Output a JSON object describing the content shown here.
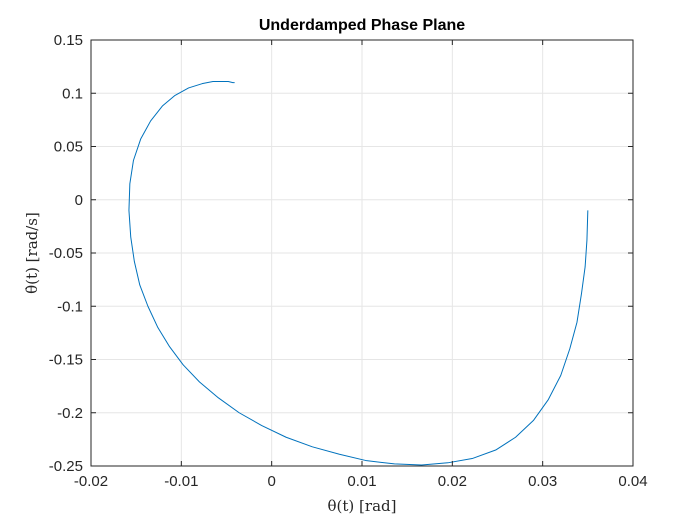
{
  "chart_data": {
    "type": "line",
    "title": "Underdamped Phase Plane",
    "xlabel": "θ(t) [rad]",
    "ylabel": "θ̇(t) [rad/s]",
    "xlim": [
      -0.02,
      0.04
    ],
    "ylim": [
      -0.25,
      0.15
    ],
    "xticks": [
      -0.02,
      -0.01,
      0,
      0.01,
      0.02,
      0.03,
      0.04
    ],
    "yticks": [
      -0.25,
      -0.2,
      -0.15,
      -0.1,
      -0.05,
      0,
      0.05,
      0.1,
      0.15
    ],
    "xtick_labels": [
      "-0.02",
      "-0.01",
      "0",
      "0.01",
      "0.02",
      "0.03",
      "0.04"
    ],
    "ytick_labels": [
      "-0.25",
      "-0.2",
      "-0.15",
      "-0.1",
      "-0.05",
      "0",
      "0.05",
      "0.1",
      "0.15"
    ],
    "grid": true,
    "series": [
      {
        "color": "#0072BD",
        "x": [
          0.035,
          0.0349,
          0.0347,
          0.0343,
          0.0338,
          0.033,
          0.032,
          0.0306,
          0.029,
          0.027,
          0.0248,
          0.0222,
          0.0195,
          0.0166,
          0.0136,
          0.0105,
          0.0075,
          0.0045,
          0.0016,
          -0.0011,
          -0.0036,
          -0.0059,
          -0.008,
          -0.0098,
          -0.0113,
          -0.0126,
          -0.0137,
          -0.0146,
          -0.0152,
          -0.0156,
          -0.0158,
          -0.0157,
          -0.0153,
          -0.0145,
          -0.0134,
          -0.0121,
          -0.0107,
          -0.0092,
          -0.0077,
          -0.0065,
          -0.0055,
          -0.0048,
          -0.0043,
          -0.0041
        ],
        "y": [
          -0.01,
          -0.038,
          -0.063,
          -0.088,
          -0.115,
          -0.14,
          -0.165,
          -0.188,
          -0.207,
          -0.223,
          -0.235,
          -0.243,
          -0.247,
          -0.249,
          -0.248,
          -0.245,
          -0.239,
          -0.232,
          -0.223,
          -0.212,
          -0.2,
          -0.186,
          -0.171,
          -0.155,
          -0.138,
          -0.12,
          -0.1,
          -0.08,
          -0.058,
          -0.035,
          -0.01,
          0.015,
          0.037,
          0.057,
          0.074,
          0.088,
          0.098,
          0.105,
          0.109,
          0.111,
          0.111,
          0.111,
          0.11,
          0.11
        ]
      }
    ]
  }
}
